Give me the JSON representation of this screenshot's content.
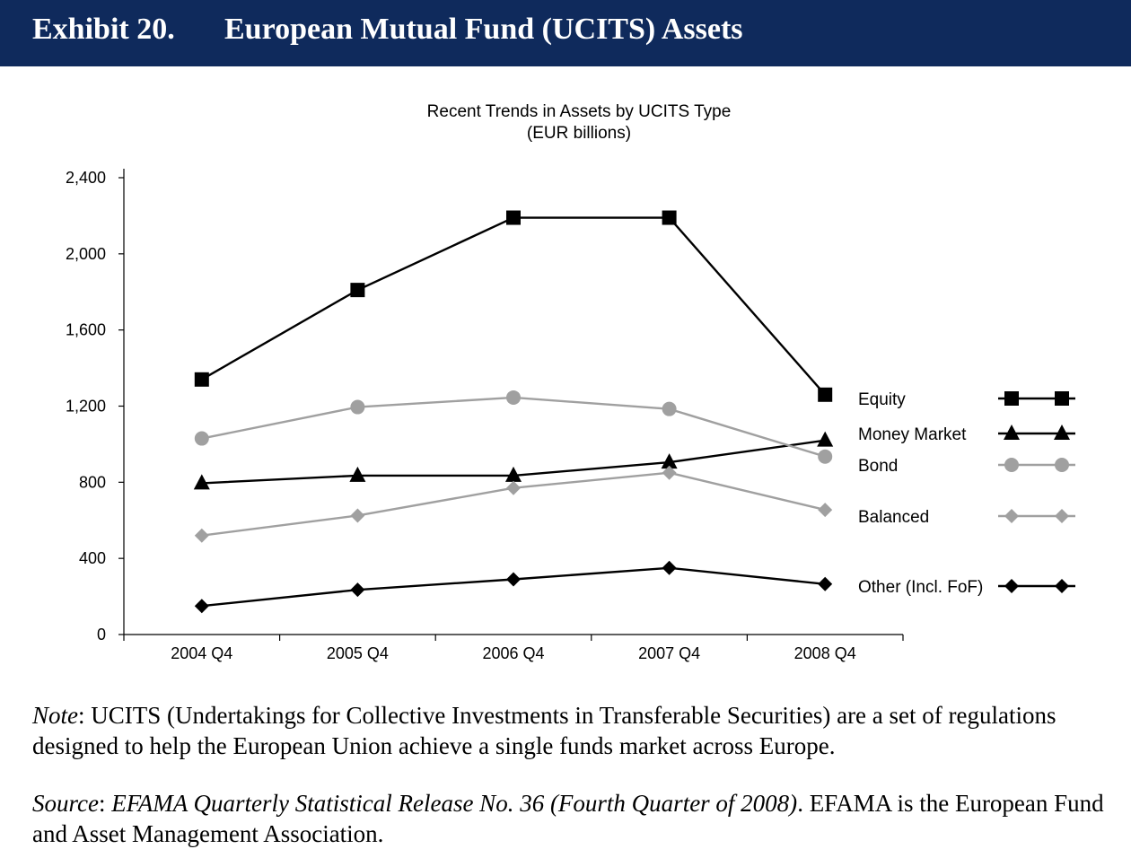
{
  "exhibit": {
    "number": "Exhibit 20.",
    "title": "European Mutual Fund (UCITS) Assets"
  },
  "chart_data": {
    "type": "line",
    "title": "Recent Trends in Assets by UCITS Type",
    "subtitle": "(EUR billions)",
    "categories": [
      "2004 Q4",
      "2005 Q4",
      "2006 Q4",
      "2007 Q4",
      "2008 Q4"
    ],
    "ylim": [
      0,
      2400
    ],
    "yticks": [
      0,
      400,
      800,
      1200,
      1600,
      2000,
      2400
    ],
    "ytick_labels": [
      "0",
      "400",
      "800",
      "1,200",
      "1,600",
      "2,000",
      "2,400"
    ],
    "legend_position": "right",
    "grid": false,
    "series": [
      {
        "name": "Equity",
        "values": [
          1340,
          1810,
          2190,
          2190,
          1260
        ],
        "color": "#000000",
        "marker": "square"
      },
      {
        "name": "Money Market",
        "values": [
          795,
          835,
          835,
          905,
          1020
        ],
        "color": "#000000",
        "marker": "triangle"
      },
      {
        "name": "Bond",
        "values": [
          1030,
          1195,
          1245,
          1185,
          935
        ],
        "color": "#a0a0a0",
        "marker": "circle"
      },
      {
        "name": "Balanced",
        "values": [
          520,
          625,
          770,
          850,
          655
        ],
        "color": "#a0a0a0",
        "marker": "diamond"
      },
      {
        "name": "Other (Incl. FoF)",
        "values": [
          150,
          235,
          290,
          350,
          265
        ],
        "color": "#000000",
        "marker": "diamond"
      }
    ]
  },
  "note": {
    "label": "Note",
    "text": ": UCITS (Undertakings for Collective Investments in Transferable Securities) are a set of regulations designed to help the European Union achieve a single funds market across Europe."
  },
  "source": {
    "label": "Source",
    "italic_text": "EFAMA Quarterly Statistical Release No. 36 (Fourth Quarter of 2008)",
    "text": ". EFAMA is the European Fund and Asset Management Association."
  }
}
